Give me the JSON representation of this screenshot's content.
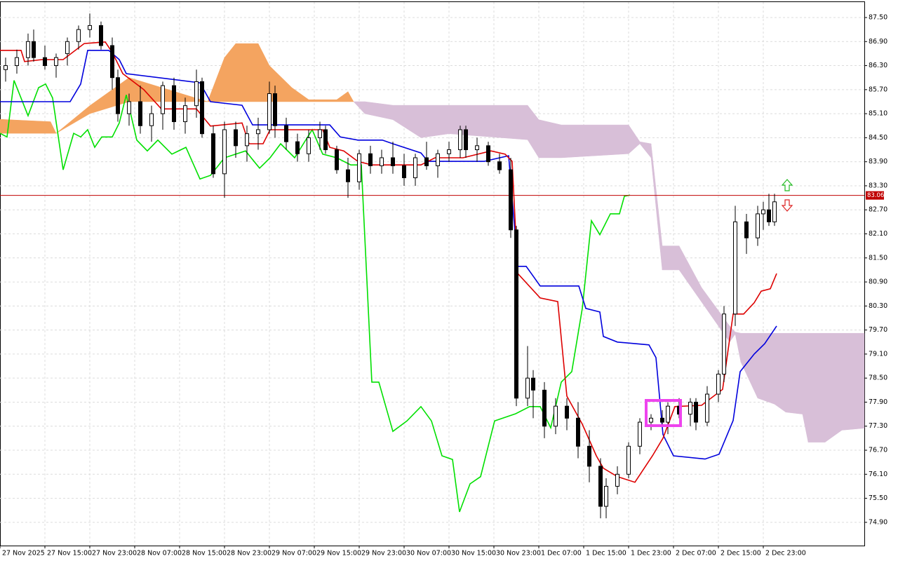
{
  "chart_data": {
    "type": "candlestick",
    "xlim": [
      0,
      154
    ],
    "ylim": [
      74.32,
      87.885
    ],
    "grid": true,
    "yticks": [
      {
        "value": 87.5,
        "label": "87.50"
      },
      {
        "value": 86.9,
        "label": "86.90"
      },
      {
        "value": 86.3,
        "label": "86.30"
      },
      {
        "value": 85.7,
        "label": "85.70"
      },
      {
        "value": 85.1,
        "label": "85.10"
      },
      {
        "value": 84.5,
        "label": "84.50"
      },
      {
        "value": 83.9,
        "label": "83.90"
      },
      {
        "value": 83.3,
        "label": "83.30"
      },
      {
        "value": 82.7,
        "label": "82.70"
      },
      {
        "value": 82.1,
        "label": "82.10"
      },
      {
        "value": 81.5,
        "label": "81.50"
      },
      {
        "value": 80.9,
        "label": "80.90"
      },
      {
        "value": 80.3,
        "label": "80.30"
      },
      {
        "value": 79.7,
        "label": "79.70"
      },
      {
        "value": 79.1,
        "label": "79.10"
      },
      {
        "value": 78.5,
        "label": "78.50"
      },
      {
        "value": 77.9,
        "label": "77.90"
      },
      {
        "value": 77.3,
        "label": "77.30"
      },
      {
        "value": 76.7,
        "label": "76.70"
      },
      {
        "value": 76.1,
        "label": "76.10"
      },
      {
        "value": 75.5,
        "label": "75.50"
      },
      {
        "value": 74.9,
        "label": "74.90"
      }
    ],
    "xticks": [
      {
        "value": 0,
        "label": "27 Nov 2025"
      },
      {
        "value": 8,
        "label": "27 Nov 15:00"
      },
      {
        "value": 16,
        "label": "27 Nov 23:00"
      },
      {
        "value": 24,
        "label": "28 Nov 07:00"
      },
      {
        "value": 32,
        "label": "28 Nov 15:00"
      },
      {
        "value": 40,
        "label": "28 Nov 23:00"
      },
      {
        "value": 48,
        "label": "29 Nov 07:00"
      },
      {
        "value": 56,
        "label": "29 Nov 15:00"
      },
      {
        "value": 64,
        "label": "29 Nov 23:00"
      },
      {
        "value": 72,
        "label": "30 Nov 07:00"
      },
      {
        "value": 80,
        "label": "30 Nov 15:00"
      },
      {
        "value": 88,
        "label": "30 Nov 23:00"
      },
      {
        "value": 96,
        "label": "1 Dec 07:00"
      },
      {
        "value": 104,
        "label": "1 Dec 15:00"
      },
      {
        "value": 112,
        "label": "1 Dec 23:00"
      },
      {
        "value": 120,
        "label": "2 Dec 07:00"
      },
      {
        "value": 128,
        "label": "2 Dec 15:00"
      },
      {
        "value": 136,
        "label": "2 Dec 23:00"
      }
    ],
    "price_line": {
      "value": 83.06,
      "color": "#c00000"
    },
    "up_color": "#ffffff",
    "down_color": "#000000",
    "x": [
      1,
      3,
      5,
      6,
      8,
      10,
      12,
      14,
      16,
      18,
      20,
      21,
      23,
      25,
      27,
      29,
      31,
      33,
      35,
      36,
      38,
      40,
      42,
      44,
      46,
      48,
      49,
      51,
      53,
      55,
      57,
      58,
      60,
      62,
      64,
      66,
      68,
      70,
      72,
      74,
      76,
      78,
      80,
      82,
      83,
      85,
      87,
      89,
      91,
      92,
      94,
      95,
      97,
      99,
      101,
      103,
      105,
      107,
      108,
      110,
      112,
      114,
      116,
      118,
      119,
      121,
      123,
      124,
      126,
      128,
      129,
      131,
      133,
      135,
      136,
      137,
      138
    ],
    "open": [
      86.2,
      86.3,
      86.5,
      86.9,
      86.5,
      86.3,
      86.6,
      86.9,
      87.2,
      87.3,
      86.8,
      86.0,
      85.1,
      85.4,
      84.8,
      85.1,
      85.8,
      84.9,
      85.3,
      85.9,
      84.6,
      83.6,
      84.7,
      84.3,
      84.6,
      84.7,
      85.6,
      84.8,
      84.4,
      84.1,
      84.5,
      84.7,
      84.2,
      83.7,
      83.4,
      84.1,
      83.8,
      84.0,
      83.8,
      83.5,
      84.0,
      83.8,
      84.1,
      84.2,
      84.7,
      84.2,
      84.3,
      83.9,
      83.7,
      82.2,
      78.0,
      78.5,
      78.2,
      77.3,
      77.8,
      77.5,
      76.8,
      76.3,
      75.3,
      75.8,
      76.1,
      76.8,
      77.4,
      77.5,
      77.4,
      77.8,
      77.6,
      77.9,
      77.4,
      78.1,
      78.6,
      80.1,
      82.4,
      82.0,
      82.6,
      82.7,
      82.4
    ],
    "high": [
      86.5,
      86.7,
      87.1,
      87.2,
      86.8,
      86.6,
      87.0,
      87.3,
      87.6,
      87.4,
      87.0,
      86.2,
      85.6,
      85.8,
      85.3,
      85.9,
      86.0,
      85.5,
      86.2,
      86.0,
      84.8,
      84.9,
      84.9,
      84.8,
      85.0,
      85.9,
      85.8,
      85.0,
      84.6,
      84.7,
      84.9,
      84.8,
      84.3,
      84.0,
      84.2,
      84.3,
      84.2,
      84.4,
      84.1,
      84.1,
      84.4,
      84.2,
      84.4,
      84.8,
      84.8,
      84.5,
      84.4,
      84.1,
      84.0,
      82.3,
      79.3,
      78.7,
      78.4,
      78.0,
      78.0,
      77.9,
      77.2,
      76.5,
      76.0,
      76.3,
      76.9,
      77.5,
      77.6,
      77.7,
      77.9,
      78.0,
      78.0,
      78.0,
      78.3,
      78.7,
      80.3,
      82.8,
      82.6,
      82.8,
      82.9,
      83.1,
      83.1
    ],
    "low": [
      85.9,
      86.1,
      86.3,
      86.4,
      86.2,
      86.0,
      86.3,
      86.7,
      87.0,
      86.7,
      85.7,
      84.9,
      84.8,
      84.6,
      84.4,
      84.7,
      84.7,
      84.6,
      85.0,
      84.5,
      83.5,
      83.0,
      84.0,
      83.9,
      84.2,
      84.6,
      84.5,
      84.2,
      83.9,
      83.9,
      84.2,
      84.1,
      83.6,
      83.0,
      83.2,
      83.6,
      83.6,
      83.6,
      83.3,
      83.3,
      83.7,
      83.5,
      83.9,
      84.0,
      84.0,
      83.9,
      83.8,
      83.6,
      82.0,
      77.8,
      77.8,
      77.5,
      77.0,
      77.1,
      77.2,
      76.5,
      75.9,
      75.0,
      75.0,
      75.6,
      76.0,
      76.6,
      77.2,
      77.3,
      77.1,
      77.5,
      77.3,
      77.2,
      77.3,
      77.9,
      78.4,
      79.8,
      81.6,
      81.8,
      82.2,
      82.3,
      82.3
    ],
    "close": [
      86.3,
      86.5,
      86.9,
      86.5,
      86.3,
      86.5,
      86.9,
      87.2,
      87.3,
      86.8,
      86.0,
      85.1,
      85.4,
      84.8,
      85.1,
      85.8,
      84.9,
      85.3,
      85.9,
      84.6,
      83.6,
      84.7,
      84.3,
      84.6,
      84.7,
      85.6,
      84.8,
      84.4,
      84.1,
      84.5,
      84.7,
      84.2,
      83.7,
      83.4,
      84.1,
      83.8,
      84.0,
      83.8,
      83.5,
      84.0,
      83.8,
      84.1,
      84.2,
      84.7,
      84.2,
      84.3,
      83.9,
      83.7,
      82.2,
      78.0,
      78.5,
      78.2,
      77.3,
      77.8,
      77.5,
      76.8,
      76.3,
      75.3,
      75.8,
      76.1,
      76.8,
      77.4,
      77.5,
      77.4,
      77.8,
      77.6,
      77.9,
      77.4,
      78.1,
      78.6,
      80.1,
      82.4,
      82.0,
      82.6,
      82.7,
      82.4,
      82.9
    ],
    "cloud": {
      "bull_color": "#f4a460",
      "bear_color": "#d8bfd8",
      "x": [
        0,
        9,
        10,
        16,
        23,
        37,
        40,
        42,
        46,
        48,
        52,
        55,
        60,
        62,
        63,
        65,
        70,
        75,
        80,
        94,
        96,
        100,
        112,
        114,
        116,
        118,
        121,
        125,
        130,
        131,
        132,
        135,
        138,
        140,
        143,
        144,
        147,
        150,
        154
      ],
      "span_a": [
        84.96,
        84.9,
        84.61,
        85.3,
        86.0,
        85.4,
        86.5,
        86.85,
        86.85,
        86.3,
        85.75,
        85.45,
        85.45,
        85.65,
        85.4,
        85.1,
        84.95,
        84.5,
        84.6,
        84.45,
        84.0,
        84.0,
        84.1,
        84.35,
        84.0,
        81.2,
        81.2,
        80.4,
        79.4,
        79.6,
        78.9,
        78.0,
        77.85,
        77.65,
        77.6,
        76.9,
        76.9,
        77.2,
        77.25
      ],
      "span_b": [
        84.61,
        84.61,
        84.61,
        85.1,
        85.4,
        85.4,
        85.4,
        85.4,
        85.4,
        85.4,
        85.4,
        85.4,
        85.4,
        85.4,
        85.4,
        85.4,
        85.31,
        85.31,
        85.31,
        85.31,
        84.95,
        84.82,
        84.82,
        84.4,
        84.35,
        81.8,
        81.8,
        80.76,
        79.8,
        79.65,
        79.62,
        79.62,
        79.62,
        79.62,
        79.62,
        79.62,
        79.62,
        79.62,
        79.62
      ]
    },
    "lines": [
      {
        "color": "#00e000",
        "x": [
          0,
          1.25,
          2.5,
          5,
          6.875,
          8.125,
          9.375,
          11.25,
          13.125,
          14.375,
          15.625,
          16.875,
          18.125,
          20,
          21.25,
          22.5,
          24.375,
          26.25,
          28.125,
          30.625,
          33.125,
          35.625,
          37.5,
          40,
          43.75,
          46.25,
          48.125,
          50,
          52.5,
          55.625,
          57.5,
          60,
          62.5,
          64.375,
          66.25,
          67.5,
          70,
          72.5,
          75,
          76.875,
          78.75,
          80.625,
          81.875,
          83.75,
          85.625,
          88.125,
          91.875,
          94.375,
          96.25,
          98.125,
          100,
          101.875,
          103.75,
          105.375,
          106.875,
          108.75,
          110.375,
          111.25,
          112.25
        ],
        "values": [
          84.61,
          84.52,
          85.93,
          85.05,
          85.75,
          85.84,
          85.49,
          83.7,
          84.61,
          84.52,
          84.7,
          84.26,
          84.52,
          84.52,
          84.87,
          85.57,
          84.44,
          84.17,
          84.44,
          84.09,
          84.26,
          83.47,
          83.56,
          84.0,
          84.17,
          83.74,
          84.0,
          84.35,
          84.0,
          84.7,
          84.09,
          84.0,
          83.82,
          83.82,
          78.4,
          78.4,
          77.17,
          77.43,
          77.79,
          77.43,
          76.56,
          76.47,
          75.16,
          75.86,
          76.04,
          77.43,
          77.61,
          77.79,
          77.79,
          77.26,
          78.4,
          78.66,
          80.24,
          82.43,
          82.08,
          82.6,
          82.6,
          83.04,
          83.07
        ]
      },
      {
        "color": "#0000dd",
        "x": [
          0,
          12.5,
          14.375,
          15.625,
          19.375,
          21.25,
          22.5,
          35.625,
          37.5,
          43.125,
          45,
          58.75,
          60.625,
          63.75,
          68.125,
          70,
          75,
          76.25,
          86.25,
          90.625,
          92.25,
          93.75,
          96.25,
          103.125,
          104.375,
          106.875,
          107.5,
          110,
          115.625,
          116.875,
          118.125,
          120,
          125.625,
          128.125,
          130.625,
          131.875,
          134.375,
          136.25,
          138.375
        ],
        "values": [
          85.4,
          85.4,
          85.84,
          86.68,
          86.68,
          86.45,
          86.1,
          85.87,
          85.4,
          85.31,
          84.82,
          84.82,
          84.52,
          84.44,
          84.44,
          84.35,
          84.12,
          83.91,
          83.91,
          84.05,
          81.29,
          81.29,
          80.8,
          80.8,
          80.24,
          80.15,
          79.54,
          79.4,
          79.33,
          79.01,
          77.09,
          76.56,
          76.48,
          76.6,
          77.44,
          78.66,
          79.1,
          79.36,
          79.8
        ]
      },
      {
        "color": "#dd0000",
        "x": [
          0,
          3.75,
          4.375,
          7.5,
          11.25,
          15,
          18.75,
          20,
          21.875,
          25.625,
          28.75,
          35,
          37.5,
          43.125,
          44.375,
          46.875,
          48.125,
          57.5,
          58.75,
          61.25,
          63.75,
          66.25,
          75,
          77.5,
          82.5,
          87.5,
          90,
          91.25,
          92.25,
          96.25,
          99.375,
          101,
          103.75,
          106.25,
          107.5,
          110,
          113.125,
          116.25,
          118.125,
          120.25,
          125,
          128.75,
          130.625,
          132.5,
          134.375,
          135.625,
          137.25,
          138.375
        ],
        "values": [
          86.68,
          86.68,
          86.4,
          86.45,
          86.45,
          86.85,
          86.89,
          86.63,
          86.1,
          85.7,
          85.22,
          85.22,
          84.79,
          84.87,
          84.35,
          84.35,
          84.7,
          84.7,
          84.26,
          84.17,
          83.91,
          83.82,
          83.82,
          84.0,
          84.0,
          84.17,
          84.09,
          83.91,
          81.11,
          80.5,
          80.41,
          78.05,
          77.35,
          76.56,
          76.25,
          76.04,
          75.9,
          76.56,
          77.0,
          77.79,
          77.82,
          78.22,
          80.1,
          80.1,
          80.38,
          80.67,
          80.73,
          81.11
        ]
      }
    ]
  }
}
